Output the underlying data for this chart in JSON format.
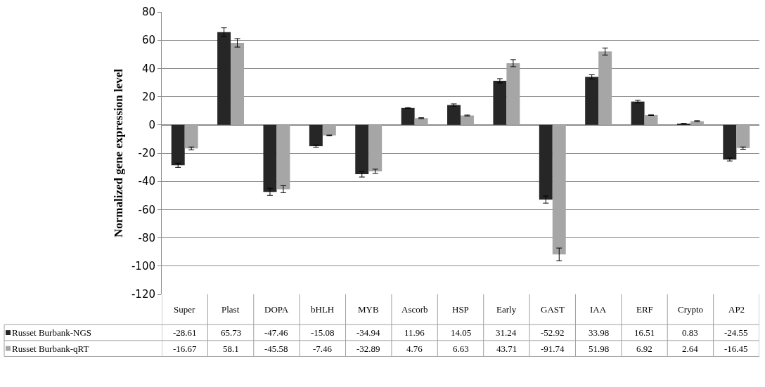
{
  "chart_data": {
    "type": "bar",
    "ylabel": "Normalized gene expression level",
    "categories": [
      "Super",
      "Plast",
      "DOPA",
      "bHLH",
      "MYB",
      "Ascorb",
      "HSP",
      "Early",
      "GAST",
      "IAA",
      "ERF",
      "Crypto",
      "AP2"
    ],
    "series": [
      {
        "name": "Russet Burbank-NGS",
        "color": "#262626",
        "values": [
          -28.61,
          65.73,
          -47.46,
          -15.08,
          -34.94,
          11.96,
          14.05,
          31.24,
          -52.92,
          33.98,
          16.51,
          0.83,
          -24.55
        ],
        "errors": [
          1.5,
          3,
          2.5,
          0.8,
          2,
          0.3,
          0.8,
          1.5,
          2.5,
          1.5,
          1,
          0.2,
          1
        ]
      },
      {
        "name": "Russet Burbank-qRT",
        "color": "#a6a6a6",
        "values": [
          -16.67,
          58.1,
          -45.58,
          -7.46,
          -32.89,
          4.76,
          6.63,
          43.71,
          -91.74,
          51.98,
          6.92,
          2.64,
          -16.45
        ],
        "errors": [
          1,
          3,
          2.5,
          0.3,
          1.5,
          0.3,
          0.3,
          2.5,
          4.5,
          2.5,
          0.3,
          0.3,
          0.8
        ]
      }
    ],
    "ylim": [
      -120,
      80
    ],
    "yticks": [
      -120,
      -100,
      -80,
      -60,
      -40,
      -20,
      0,
      20,
      40,
      60,
      80
    ],
    "grid": "y",
    "tick_labels": "y",
    "data_labels": true,
    "legend": "bottom left"
  }
}
